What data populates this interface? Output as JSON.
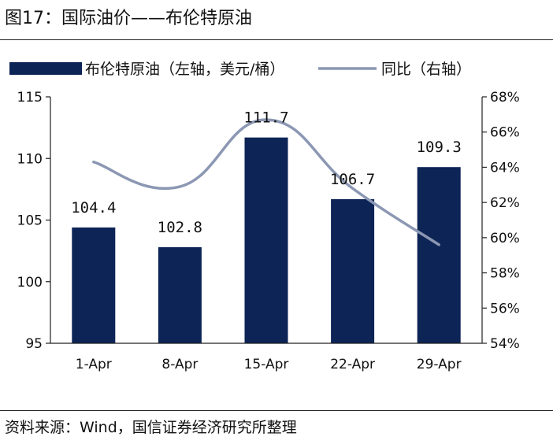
{
  "figure": {
    "title": "图17：国际油价——布伦特原油",
    "source": "资料来源：Wind，国信证券经济研究所整理"
  },
  "chart_data": {
    "type": "bar+line",
    "categories": [
      "1-Apr",
      "8-Apr",
      "15-Apr",
      "22-Apr",
      "29-Apr"
    ],
    "series": [
      {
        "name": "布伦特原油（左轴，美元/桶）",
        "type": "bar",
        "axis": "left",
        "values": [
          104.4,
          102.8,
          111.7,
          106.7,
          109.3
        ],
        "labels": [
          "104.4",
          "102.8",
          "111.7",
          "106.7",
          "109.3"
        ],
        "color": "#0d2456"
      },
      {
        "name": "同比（右轴）",
        "type": "line",
        "axis": "right",
        "values": [
          64.3,
          62.9,
          66.7,
          62.8,
          59.6
        ],
        "color": "#8b97b3"
      }
    ],
    "y_left": {
      "min": 95,
      "max": 115,
      "ticks": [
        "95",
        "100",
        "105",
        "110",
        "115"
      ]
    },
    "y_right": {
      "min": 54,
      "max": 68,
      "ticks": [
        "54%",
        "56%",
        "58%",
        "60%",
        "62%",
        "64%",
        "66%",
        "68%"
      ]
    },
    "legend_position": "top",
    "grid": false
  }
}
